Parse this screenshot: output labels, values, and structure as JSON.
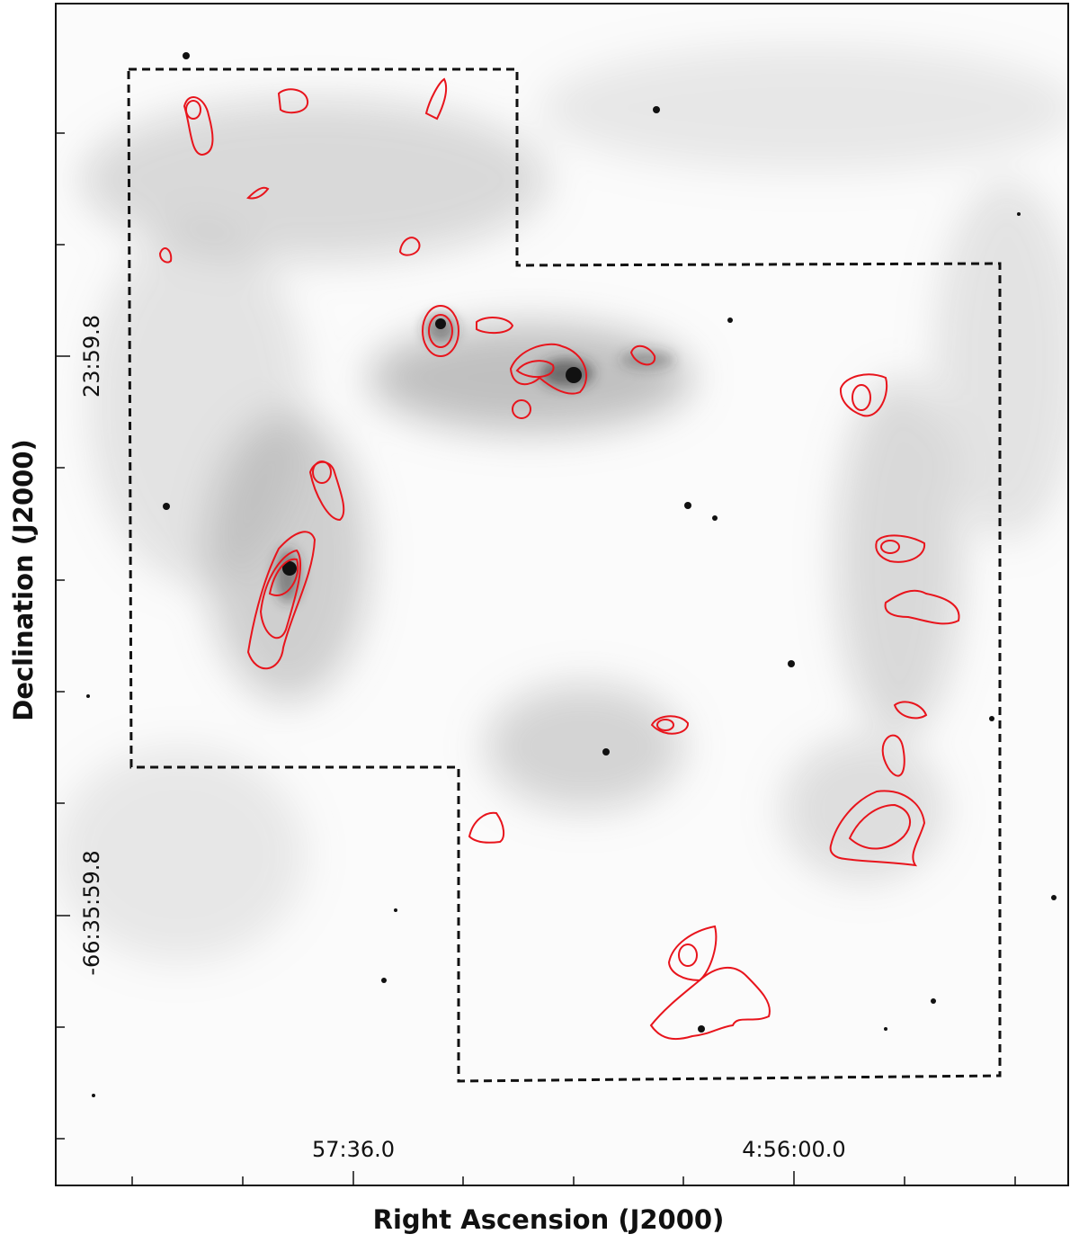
{
  "x_axis": {
    "label": "Right Ascension (J2000)",
    "tick_labels": [
      "57:36.0",
      "4:56:00.0"
    ]
  },
  "y_axis": {
    "label": "Declination (J2000)",
    "tick_labels": [
      "23:59.8",
      "-66:35:59.8"
    ]
  }
}
